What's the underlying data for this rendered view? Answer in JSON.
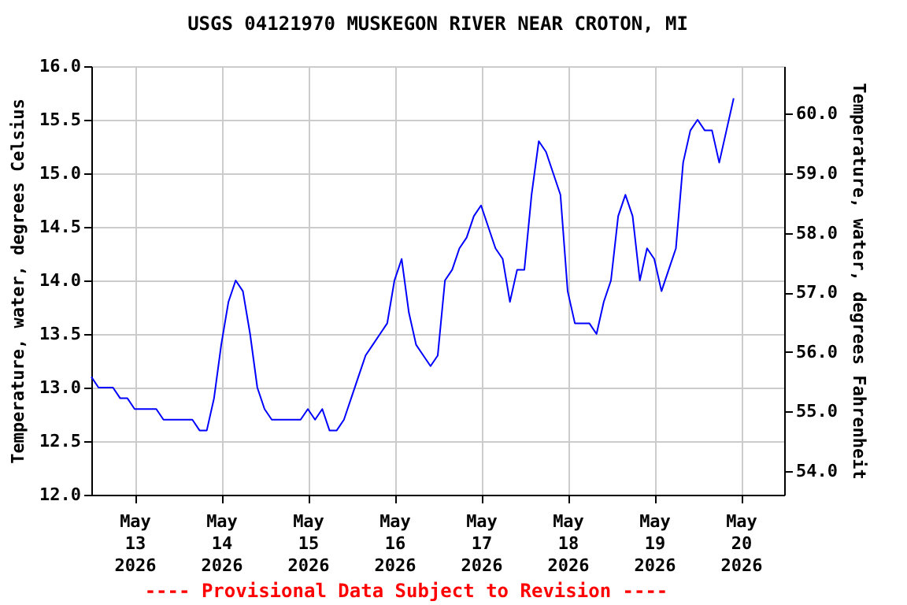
{
  "chart_data": {
    "type": "line",
    "title": "USGS 04121970 MUSKEGON RIVER NEAR CROTON, MI",
    "ylabel": "Temperature, water, degrees Celsius",
    "y2label": "Temperature, water, degrees Fahrenheit",
    "annotations": [
      "---- Provisional Data Subject to Revision ----"
    ],
    "x": [
      "2026-05-12T12:00",
      "2026-05-12T14:00",
      "2026-05-12T16:00",
      "2026-05-12T18:00",
      "2026-05-12T20:00",
      "2026-05-12T22:00",
      "2026-05-13T00:00",
      "2026-05-13T02:00",
      "2026-05-13T04:00",
      "2026-05-13T06:00",
      "2026-05-13T08:00",
      "2026-05-13T10:00",
      "2026-05-13T12:00",
      "2026-05-13T14:00",
      "2026-05-13T16:00",
      "2026-05-13T18:00",
      "2026-05-13T20:00",
      "2026-05-13T22:00",
      "2026-05-14T00:00",
      "2026-05-14T02:00",
      "2026-05-14T04:00",
      "2026-05-14T06:00",
      "2026-05-14T08:00",
      "2026-05-14T10:00",
      "2026-05-14T12:00",
      "2026-05-14T14:00",
      "2026-05-14T16:00",
      "2026-05-14T18:00",
      "2026-05-14T20:00",
      "2026-05-14T22:00",
      "2026-05-15T00:00",
      "2026-05-15T02:00",
      "2026-05-15T04:00",
      "2026-05-15T06:00",
      "2026-05-15T08:00",
      "2026-05-15T10:00",
      "2026-05-15T12:00",
      "2026-05-15T14:00",
      "2026-05-15T16:00",
      "2026-05-15T18:00",
      "2026-05-15T20:00",
      "2026-05-15T22:00",
      "2026-05-16T00:00",
      "2026-05-16T02:00",
      "2026-05-16T04:00",
      "2026-05-16T06:00",
      "2026-05-16T08:00",
      "2026-05-16T10:00",
      "2026-05-16T12:00",
      "2026-05-16T14:00",
      "2026-05-16T16:00",
      "2026-05-16T18:00",
      "2026-05-16T20:00",
      "2026-05-16T22:00",
      "2026-05-17T00:00",
      "2026-05-17T02:00",
      "2026-05-17T04:00",
      "2026-05-17T06:00",
      "2026-05-17T08:00",
      "2026-05-17T10:00",
      "2026-05-17T12:00",
      "2026-05-17T14:00",
      "2026-05-17T16:00",
      "2026-05-17T18:00",
      "2026-05-17T20:00",
      "2026-05-17T22:00",
      "2026-05-18T00:00",
      "2026-05-18T02:00",
      "2026-05-18T04:00",
      "2026-05-18T06:00",
      "2026-05-18T08:00",
      "2026-05-18T10:00",
      "2026-05-18T12:00",
      "2026-05-18T14:00",
      "2026-05-18T16:00",
      "2026-05-18T18:00",
      "2026-05-18T20:00",
      "2026-05-18T22:00",
      "2026-05-19T00:00",
      "2026-05-19T02:00",
      "2026-05-19T04:00",
      "2026-05-19T06:00",
      "2026-05-19T08:00",
      "2026-05-19T10:00",
      "2026-05-19T12:00",
      "2026-05-19T14:00",
      "2026-05-19T16:00",
      "2026-05-19T18:00",
      "2026-05-19T20:00",
      "2026-05-19T22:00"
    ],
    "series": [
      {
        "color": "#0000ff",
        "values": [
          13.1,
          13.0,
          13.0,
          13.0,
          12.9,
          12.9,
          12.8,
          12.8,
          12.8,
          12.8,
          12.7,
          12.7,
          12.7,
          12.7,
          12.7,
          12.6,
          12.6,
          12.9,
          13.4,
          13.8,
          14.0,
          13.9,
          13.5,
          13.0,
          12.8,
          12.7,
          12.7,
          12.7,
          12.7,
          12.7,
          12.8,
          12.7,
          12.8,
          12.6,
          12.6,
          12.7,
          12.9,
          13.1,
          13.3,
          13.4,
          13.5,
          13.6,
          14.0,
          14.2,
          13.7,
          13.4,
          13.3,
          13.2,
          13.3,
          14.0,
          14.1,
          14.3,
          14.4,
          14.6,
          14.7,
          14.5,
          14.3,
          14.2,
          13.8,
          14.1,
          14.1,
          14.8,
          15.3,
          15.2,
          15.0,
          14.8,
          13.9,
          13.6,
          13.6,
          13.6,
          13.5,
          13.8,
          14.0,
          14.6,
          14.8,
          14.6,
          14.0,
          14.3,
          14.2,
          13.9,
          14.1,
          14.3,
          15.1,
          15.4,
          15.5,
          15.4,
          15.4,
          15.1,
          15.4,
          15.7
        ]
      }
    ],
    "xlim": [
      "2026-05-12T12:00",
      "2026-05-20T12:00"
    ],
    "xticks": [
      {
        "value": "2026-05-13",
        "label": "May\n13\n2026"
      },
      {
        "value": "2026-05-14",
        "label": "May\n14\n2026"
      },
      {
        "value": "2026-05-15",
        "label": "May\n15\n2026"
      },
      {
        "value": "2026-05-16",
        "label": "May\n16\n2026"
      },
      {
        "value": "2026-05-17",
        "label": "May\n17\n2026"
      },
      {
        "value": "2026-05-18",
        "label": "May\n18\n2026"
      },
      {
        "value": "2026-05-19",
        "label": "May\n19\n2026"
      },
      {
        "value": "2026-05-20",
        "label": "May\n20\n2026"
      }
    ],
    "ylim": [
      12.0,
      16.0
    ],
    "yticks": [
      {
        "value": 12,
        "label": "12.0"
      },
      {
        "value": 12.5,
        "label": "12.5"
      },
      {
        "value": 13,
        "label": "13.0"
      },
      {
        "value": 13.5,
        "label": "13.5"
      },
      {
        "value": 14,
        "label": "14.0"
      },
      {
        "value": 14.5,
        "label": "14.5"
      },
      {
        "value": 15,
        "label": "15.0"
      },
      {
        "value": 15.5,
        "label": "15.5"
      },
      {
        "value": 16,
        "label": "16.0"
      }
    ],
    "y2lim": [
      53.6,
      60.8
    ],
    "y2ticks": [
      {
        "value": 54,
        "label": "54.0"
      },
      {
        "value": 55,
        "label": "55.0"
      },
      {
        "value": 56,
        "label": "56.0"
      },
      {
        "value": 57,
        "label": "57.0"
      },
      {
        "value": 58,
        "label": "58.0"
      },
      {
        "value": 59,
        "label": "59.0"
      },
      {
        "value": 60,
        "label": "60.0"
      }
    ],
    "grid": true,
    "line_style": "solid",
    "marker": "none"
  }
}
